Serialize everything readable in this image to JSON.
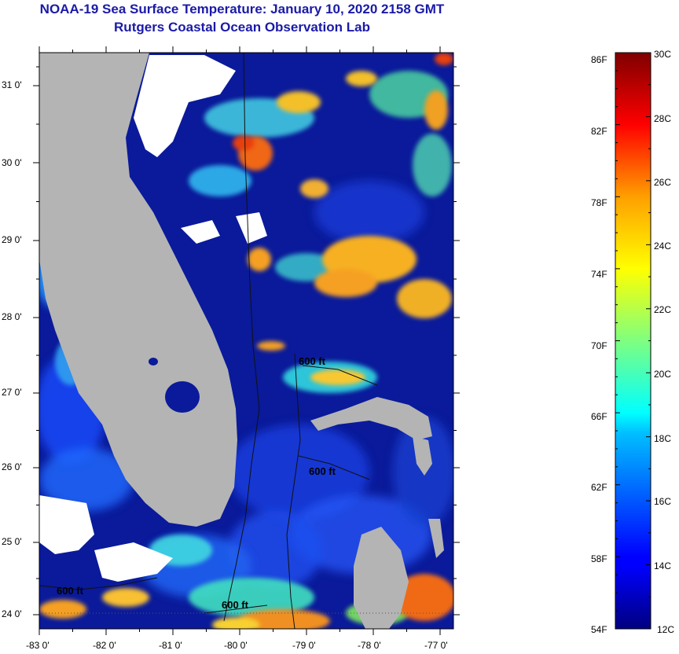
{
  "title": {
    "line1": "NOAA-19 Sea Surface Temperature:  January 10, 2020 2158 GMT",
    "line2": "Rutgers Coastal Ocean Observation Lab"
  },
  "map": {
    "lon_labels": [
      "-83 0'",
      "-82 0'",
      "-81 0'",
      "-80 0'",
      "-79 0'",
      "-78 0'",
      "-77 0'"
    ],
    "lat_labels": [
      "31 0'",
      "30 0'",
      "29 0'",
      "28 0'",
      "27 0'",
      "26 0'",
      "25 0'",
      "24 0'"
    ],
    "lon_range": [
      -83,
      -77
    ],
    "lat_range": [
      23.9,
      31.4
    ],
    "contour_labels": [
      "600 ft",
      "600 ft",
      "600 ft",
      "600 ft"
    ],
    "colors": {
      "land": "#b4b4b4",
      "cloud": "#ffffff",
      "cold_water": "#0a1a9a",
      "warm_water": "#f08c1e"
    }
  },
  "colorbar": {
    "fahrenheit_labels": [
      "86F",
      "82F",
      "78F",
      "74F",
      "70F",
      "66F",
      "62F",
      "58F",
      "54F"
    ],
    "celsius_labels": [
      "30C",
      "28C",
      "26C",
      "24C",
      "22C",
      "20C",
      "18C",
      "16C",
      "14C",
      "12C"
    ],
    "range_c": [
      12,
      30
    ],
    "colormap": "jet"
  }
}
